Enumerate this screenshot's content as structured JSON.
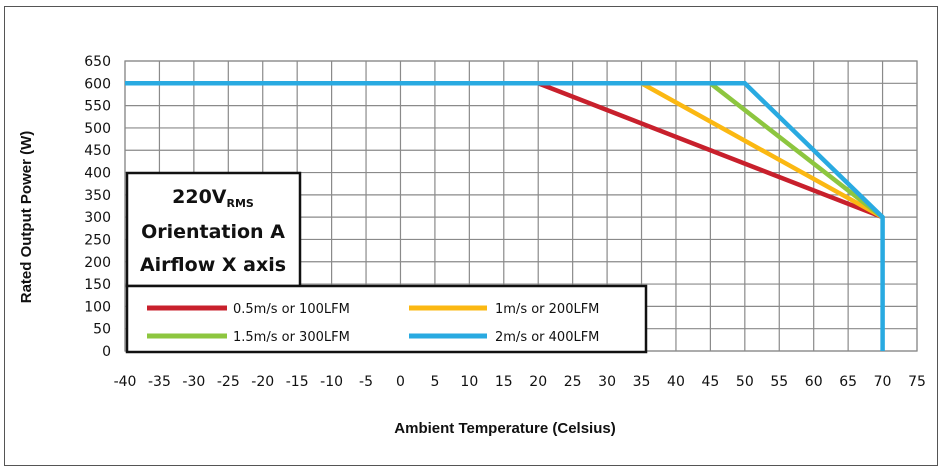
{
  "chart_data": {
    "type": "line",
    "title": "",
    "xlabel": "Ambient Temperature (Celsius)",
    "ylabel": "Rated Output Power (W)",
    "xlim": [
      -40,
      75
    ],
    "ylim": [
      0,
      650
    ],
    "x_ticks": [
      -40,
      -35,
      -30,
      -25,
      -20,
      -15,
      -10,
      -5,
      0,
      5,
      10,
      15,
      20,
      25,
      30,
      35,
      40,
      45,
      50,
      55,
      60,
      65,
      70,
      75
    ],
    "y_ticks": [
      0,
      50,
      100,
      150,
      200,
      250,
      300,
      350,
      400,
      450,
      500,
      550,
      600,
      650
    ],
    "grid": true,
    "legend_position": "bottom-left, inside plot",
    "series": [
      {
        "name": "0.5m/s or 100LFM",
        "color": "#c8202c",
        "x": [
          -40,
          20,
          70
        ],
        "y": [
          600,
          600,
          300
        ]
      },
      {
        "name": "1m/s or 200LFM",
        "color": "#fbb812",
        "x": [
          -40,
          35,
          70
        ],
        "y": [
          600,
          600,
          300
        ]
      },
      {
        "name": "1.5m/s or 300LFM",
        "color": "#8dc63f",
        "x": [
          -40,
          45,
          70
        ],
        "y": [
          600,
          600,
          300
        ]
      },
      {
        "name": "2m/s or 400LFM",
        "color": "#29aae1",
        "x": [
          -40,
          50,
          70,
          70
        ],
        "y": [
          600,
          600,
          300,
          0
        ]
      }
    ],
    "condition_box": {
      "line1_main": "220V",
      "line1_sub": "RMS",
      "line2": "Orientation A",
      "line3": "Airflow X axis"
    }
  }
}
